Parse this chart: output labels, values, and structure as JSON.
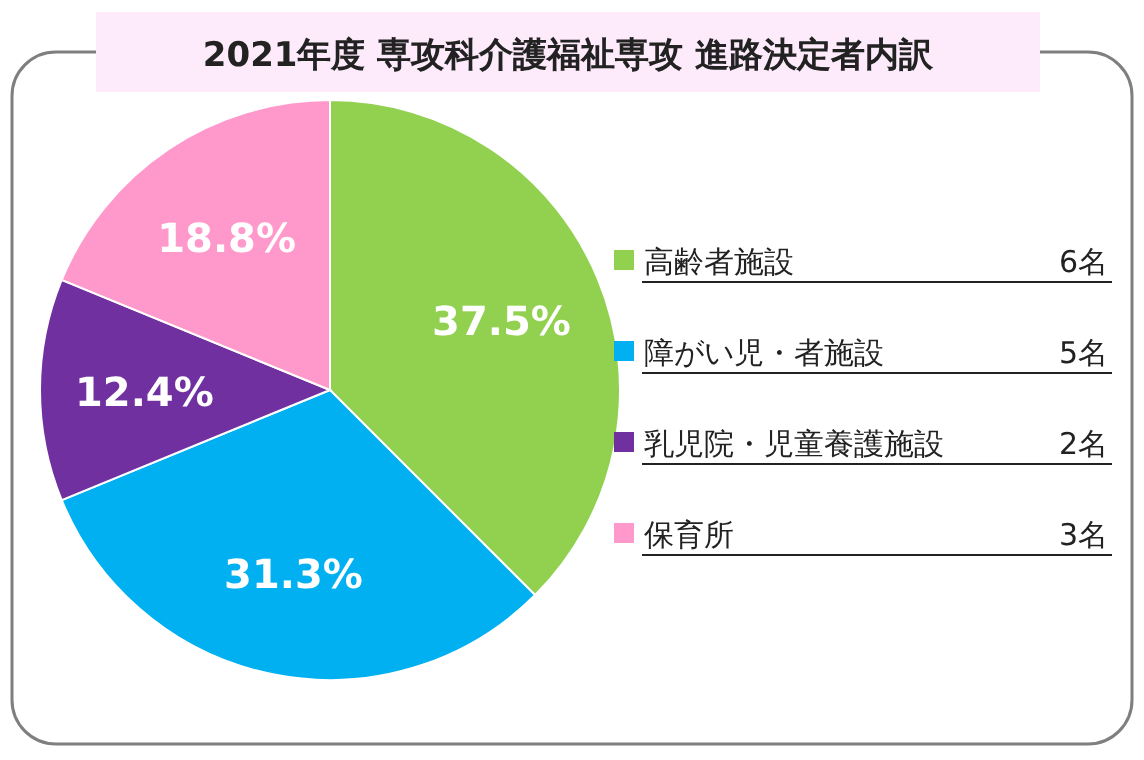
{
  "chart_data": {
    "type": "pie",
    "title": "2021年度 専攻科介護福祉専攻 進路決定者内訳",
    "categories": [
      "高齢者施設",
      "障がい児・者施設",
      "乳児院・児童養護施設",
      "保育所"
    ],
    "values": [
      37.5,
      31.3,
      12.4,
      18.8
    ],
    "colors": [
      "#92d050",
      "#00b0f0",
      "#7030a0",
      "#ff99cc"
    ],
    "value_labels": [
      "37.5%",
      "31.3%",
      "12.4%",
      "18.8%"
    ],
    "legend": "right",
    "annotations": [
      "6名",
      "5名",
      "2名",
      "3名"
    ]
  }
}
